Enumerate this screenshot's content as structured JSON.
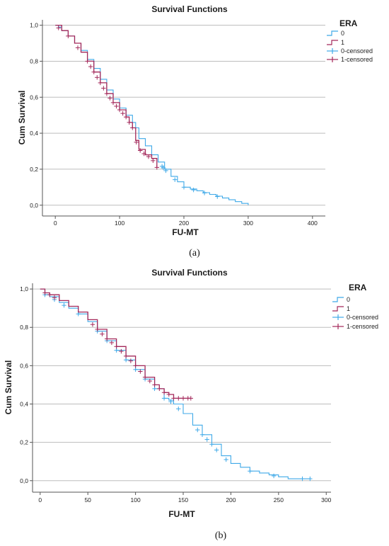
{
  "chart_data": [
    {
      "type": "line",
      "title": "Survival Functions",
      "xlabel": "FU-MT",
      "ylabel": "Cum Survival",
      "xlim": [
        -20,
        420
      ],
      "ylim": [
        -0.06,
        1.03
      ],
      "xticks": [
        "0",
        "100",
        "200",
        "300",
        "400"
      ],
      "xtick_values": [
        0,
        100,
        200,
        300,
        400
      ],
      "yticks": [
        "0,0",
        "0,2",
        "0,4",
        "0,6",
        "0,8",
        "1,0"
      ],
      "ytick_values": [
        0,
        0.2,
        0.4,
        0.6,
        0.8,
        1.0
      ],
      "grid": "horizontal",
      "legend": {
        "title": "ERA",
        "position": "right",
        "entries": [
          "0",
          "1",
          "0-censored",
          "1-censored"
        ]
      },
      "caption": "(a)",
      "series": [
        {
          "name": "0",
          "color": "#3fa9e8",
          "x": [
            0,
            5,
            10,
            20,
            30,
            40,
            50,
            60,
            70,
            80,
            90,
            100,
            110,
            120,
            125,
            130,
            140,
            150,
            160,
            170,
            180,
            190,
            200,
            210,
            220,
            230,
            240,
            250,
            260,
            270,
            280,
            290,
            300
          ],
          "y": [
            1.0,
            0.99,
            0.97,
            0.94,
            0.9,
            0.86,
            0.81,
            0.76,
            0.7,
            0.64,
            0.59,
            0.54,
            0.5,
            0.46,
            0.43,
            0.37,
            0.33,
            0.28,
            0.24,
            0.2,
            0.16,
            0.13,
            0.1,
            0.09,
            0.08,
            0.07,
            0.06,
            0.05,
            0.04,
            0.03,
            0.02,
            0.01,
            0.0
          ],
          "censored": [
            166,
            168,
            172,
            186,
            200,
            215,
            232,
            252
          ]
        },
        {
          "name": "1",
          "color": "#a3285a",
          "x": [
            0,
            10,
            20,
            30,
            40,
            50,
            60,
            70,
            80,
            90,
            100,
            110,
            115,
            120,
            125,
            130,
            140,
            150,
            158
          ],
          "y": [
            1.0,
            0.97,
            0.94,
            0.9,
            0.85,
            0.8,
            0.74,
            0.68,
            0.62,
            0.57,
            0.53,
            0.49,
            0.46,
            0.43,
            0.36,
            0.31,
            0.28,
            0.26,
            0.21
          ],
          "censored": [
            5,
            20,
            35,
            50,
            55,
            60,
            65,
            70,
            75,
            80,
            85,
            90,
            95,
            100,
            105,
            110,
            115,
            120,
            126,
            132,
            138,
            145,
            152,
            158
          ]
        }
      ]
    },
    {
      "type": "line",
      "title": "Survival Functions",
      "xlabel": "FU-MT",
      "ylabel": "Cum Survival",
      "xlim": [
        -8,
        305
      ],
      "ylim": [
        -0.06,
        1.03
      ],
      "xticks": [
        "0",
        "50",
        "100",
        "150",
        "200",
        "250",
        "300"
      ],
      "xtick_values": [
        0,
        50,
        100,
        150,
        200,
        250,
        300
      ],
      "yticks": [
        "0,0",
        "0,2",
        "0,4",
        "0,6",
        "0,8",
        "1,0"
      ],
      "ytick_values": [
        0,
        0.2,
        0.4,
        0.6,
        0.8,
        1.0
      ],
      "grid": "horizontal",
      "legend": {
        "title": "ERA",
        "position": "right",
        "entries": [
          "0",
          "1",
          "0-censored",
          "1-censored"
        ]
      },
      "caption": "(b)",
      "series": [
        {
          "name": "0",
          "color": "#3fa9e8",
          "x": [
            0,
            5,
            10,
            20,
            30,
            40,
            50,
            60,
            70,
            80,
            90,
            100,
            110,
            120,
            130,
            135,
            140,
            150,
            160,
            170,
            180,
            190,
            200,
            210,
            220,
            230,
            240,
            250,
            260,
            270,
            283
          ],
          "y": [
            1.0,
            0.97,
            0.96,
            0.93,
            0.9,
            0.87,
            0.83,
            0.78,
            0.73,
            0.68,
            0.63,
            0.58,
            0.53,
            0.48,
            0.43,
            0.42,
            0.4,
            0.35,
            0.29,
            0.24,
            0.19,
            0.13,
            0.09,
            0.07,
            0.05,
            0.04,
            0.03,
            0.02,
            0.01,
            0.01,
            0.01
          ],
          "censored": [
            5,
            15,
            25,
            40,
            60,
            70,
            80,
            90,
            100,
            110,
            120,
            130,
            137,
            145,
            165,
            170,
            175,
            180,
            185,
            195,
            220,
            245,
            275,
            283
          ]
        },
        {
          "name": "1",
          "color": "#a3285a",
          "x": [
            0,
            5,
            10,
            20,
            30,
            40,
            50,
            60,
            70,
            80,
            90,
            100,
            110,
            120,
            125,
            130,
            135,
            140,
            150,
            158
          ],
          "y": [
            1.0,
            0.98,
            0.97,
            0.94,
            0.91,
            0.88,
            0.84,
            0.79,
            0.74,
            0.7,
            0.65,
            0.6,
            0.54,
            0.5,
            0.48,
            0.46,
            0.45,
            0.43,
            0.43,
            0.43
          ],
          "censored": [
            5,
            10,
            15,
            55,
            60,
            65,
            70,
            75,
            80,
            85,
            90,
            95,
            100,
            105,
            110,
            115,
            120,
            125,
            130,
            135,
            140,
            145,
            150,
            155,
            158
          ]
        }
      ]
    }
  ]
}
